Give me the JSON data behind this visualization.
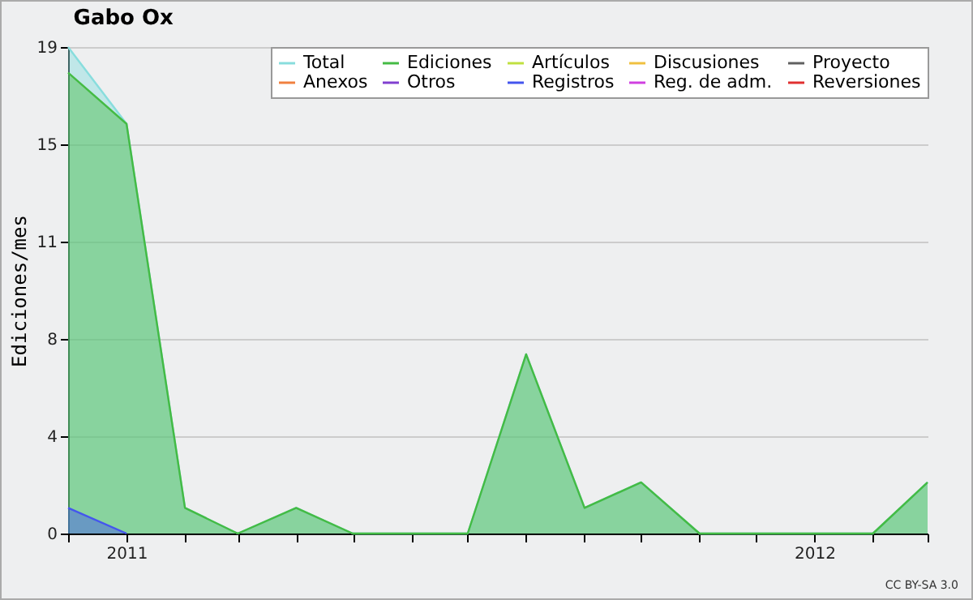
{
  "chart_data": {
    "type": "area",
    "title": "Gabo Ox",
    "ylabel": "Ediciones/mes",
    "x": [
      "2010-12",
      "2011-01",
      "2011-02",
      "2011-03",
      "2011-04",
      "2011-05",
      "2011-06",
      "2011-07",
      "2011-08",
      "2011-09",
      "2011-10",
      "2011-11",
      "2011-12",
      "2012-01",
      "2012-02",
      "2012-03"
    ],
    "series": [
      {
        "name": "Total",
        "color": "#88dddd",
        "values": [
          19,
          16,
          1,
          0,
          1,
          0,
          0,
          0,
          7,
          1,
          2,
          0,
          0,
          0,
          0,
          2
        ]
      },
      {
        "name": "Ediciones",
        "color": "#44bb44",
        "values": [
          18,
          16,
          1,
          0,
          1,
          0,
          0,
          0,
          7,
          1,
          2,
          0,
          0,
          0,
          0,
          2
        ]
      },
      {
        "name": "Artículos",
        "color": "#c0e040",
        "values": [
          null,
          null,
          null,
          null,
          null,
          null,
          null,
          null,
          null,
          null,
          null,
          null,
          null,
          null,
          null,
          null
        ]
      },
      {
        "name": "Discusiones",
        "color": "#f0c040",
        "values": [
          null,
          null,
          null,
          null,
          null,
          null,
          null,
          null,
          null,
          null,
          null,
          null,
          null,
          null,
          null,
          null
        ]
      },
      {
        "name": "Proyecto",
        "color": "#606060",
        "values": [
          null,
          null,
          null,
          null,
          null,
          null,
          null,
          null,
          null,
          null,
          null,
          null,
          null,
          null,
          null,
          null
        ]
      },
      {
        "name": "Anexos",
        "color": "#f08040",
        "values": [
          null,
          null,
          null,
          null,
          null,
          null,
          null,
          null,
          null,
          null,
          null,
          null,
          null,
          null,
          null,
          null
        ]
      },
      {
        "name": "Otros",
        "color": "#8040d0",
        "values": [
          null,
          null,
          null,
          null,
          null,
          null,
          null,
          null,
          null,
          null,
          null,
          null,
          null,
          null,
          null,
          null
        ]
      },
      {
        "name": "Registros",
        "color": "#4455ee",
        "values": [
          1,
          0,
          null,
          null,
          null,
          null,
          null,
          null,
          null,
          null,
          null,
          null,
          null,
          null,
          null,
          null
        ]
      },
      {
        "name": "Reg. de adm.",
        "color": "#d040e0",
        "values": [
          null,
          null,
          null,
          null,
          null,
          null,
          null,
          null,
          null,
          null,
          null,
          null,
          null,
          null,
          null,
          null
        ]
      },
      {
        "name": "Reversiones",
        "color": "#e03030",
        "values": [
          null,
          null,
          null,
          null,
          null,
          null,
          null,
          null,
          null,
          null,
          null,
          null,
          null,
          null,
          null,
          null
        ]
      }
    ],
    "xlim": [
      "2010-12",
      "2012-03"
    ],
    "xticks": [
      {
        "value": "2010-12",
        "label": null
      },
      {
        "value": "2011-01",
        "label": "2011"
      },
      {
        "value": "2011-02",
        "label": null
      },
      {
        "value": "2011-03",
        "label": null
      },
      {
        "value": "2011-04",
        "label": null
      },
      {
        "value": "2011-05",
        "label": null
      },
      {
        "value": "2011-06",
        "label": null
      },
      {
        "value": "2011-07",
        "label": null
      },
      {
        "value": "2011-08",
        "label": null
      },
      {
        "value": "2011-09",
        "label": null
      },
      {
        "value": "2011-10",
        "label": null
      },
      {
        "value": "2011-11",
        "label": null
      },
      {
        "value": "2011-12",
        "label": null
      },
      {
        "value": "2012-01",
        "label": "2012"
      },
      {
        "value": "2012-02",
        "label": null
      },
      {
        "value": "2012-03",
        "label": null
      }
    ],
    "ylim": [
      0,
      19
    ],
    "yticks": [
      0,
      {
        "value": 3.8,
        "label": "4"
      },
      {
        "value": 7.6,
        "label": "8"
      },
      {
        "value": 11.4,
        "label": "11"
      },
      {
        "value": 15.2,
        "label": "15"
      },
      19
    ],
    "grid": "y",
    "legend": "top right",
    "marker": "none",
    "line_style": "solid",
    "annotations": [
      "CC BY-SA 3.0"
    ]
  }
}
